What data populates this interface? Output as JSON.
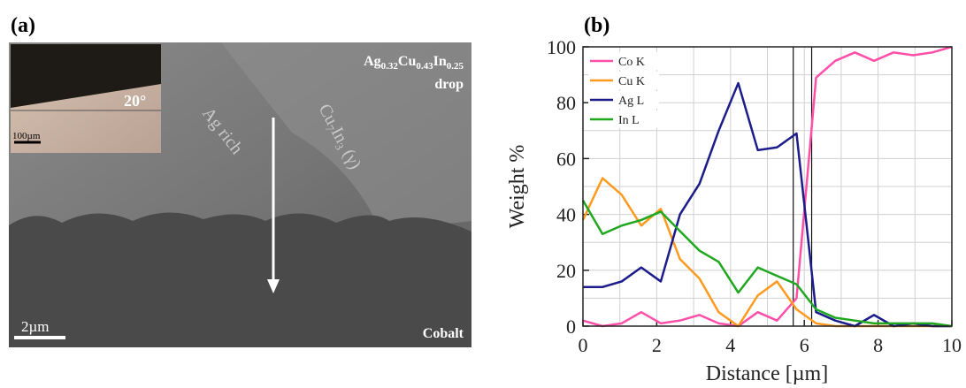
{
  "panels": {
    "a": "(a)",
    "b": "(b)"
  },
  "micrograph": {
    "composition": [
      "Ag",
      "0.32",
      "Cu",
      "0.43",
      "In",
      "0.25"
    ],
    "drop": "drop",
    "angle": "20°",
    "inset_scale": "100µm",
    "phase_1": "Ag rich",
    "phase_2": [
      "Cu",
      "7",
      "In",
      "3",
      " (γ)"
    ],
    "scale_bar": "2µm",
    "substrate": "Cobalt"
  },
  "chart_data": {
    "type": "line",
    "x": [
      0,
      0.53,
      1.05,
      1.58,
      2.11,
      2.63,
      3.16,
      3.68,
      4.21,
      4.74,
      5.26,
      5.79,
      6.32,
      6.84,
      7.37,
      7.89,
      8.42,
      8.95,
      9.47,
      10
    ],
    "series": [
      {
        "name": "Co K",
        "color": "#ff4fa8",
        "values": [
          2,
          0,
          1,
          5,
          1,
          2,
          4,
          1,
          0,
          5,
          2,
          10,
          89,
          95,
          98,
          95,
          98,
          97,
          98,
          100
        ]
      },
      {
        "name": "Cu K",
        "color": "#ff9a1f",
        "values": [
          38,
          53,
          47,
          36,
          42,
          24,
          17,
          5,
          0,
          11,
          16,
          6,
          1,
          0,
          0,
          0,
          0,
          0,
          0,
          0
        ]
      },
      {
        "name": "Ag L",
        "color": "#1c1c8a",
        "values": [
          14,
          14,
          16,
          21,
          16,
          40,
          51,
          70,
          87,
          63,
          64,
          69,
          5,
          2,
          0,
          4,
          0,
          1,
          0,
          0
        ]
      },
      {
        "name": "In L",
        "color": "#1fa81f",
        "values": [
          45,
          33,
          36,
          38,
          41,
          34,
          27,
          23,
          12,
          21,
          18,
          15,
          6,
          3,
          2,
          1,
          1,
          1,
          1,
          0
        ]
      }
    ],
    "xlim": [
      0,
      10
    ],
    "ylim": [
      0,
      100
    ],
    "xticks": [
      0,
      2,
      4,
      6,
      8,
      10
    ],
    "yticks": [
      0,
      20,
      40,
      60,
      80,
      100
    ],
    "xlabel": "Distance [µm]",
    "ylabel": "Weight %",
    "grid": true,
    "legend": "upper left",
    "vlines": [
      5.7,
      6.2
    ]
  }
}
